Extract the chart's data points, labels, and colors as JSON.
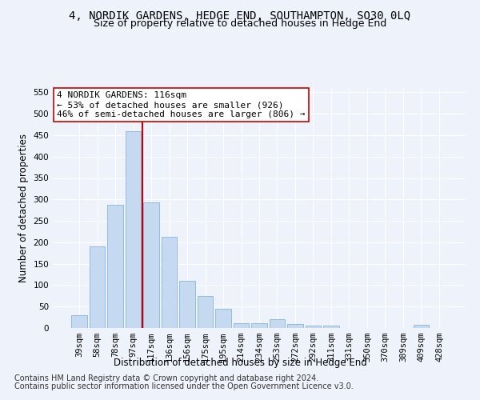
{
  "title": "4, NORDIK GARDENS, HEDGE END, SOUTHAMPTON, SO30 0LQ",
  "subtitle": "Size of property relative to detached houses in Hedge End",
  "xlabel": "Distribution of detached houses by size in Hedge End",
  "ylabel": "Number of detached properties",
  "bar_color": "#c5d9f0",
  "bar_edge_color": "#8ab4d8",
  "categories": [
    "39sqm",
    "58sqm",
    "78sqm",
    "97sqm",
    "117sqm",
    "136sqm",
    "156sqm",
    "175sqm",
    "195sqm",
    "214sqm",
    "234sqm",
    "253sqm",
    "272sqm",
    "292sqm",
    "311sqm",
    "331sqm",
    "350sqm",
    "370sqm",
    "389sqm",
    "409sqm",
    "428sqm"
  ],
  "values": [
    30,
    190,
    287,
    460,
    293,
    213,
    110,
    75,
    45,
    12,
    12,
    21,
    9,
    5,
    5,
    0,
    0,
    0,
    0,
    7,
    0
  ],
  "vline_color": "#cc0000",
  "vline_index": 4,
  "annotation_text": "4 NORDIK GARDENS: 116sqm\n← 53% of detached houses are smaller (926)\n46% of semi-detached houses are larger (806) →",
  "annotation_box_color": "#ffffff",
  "annotation_box_edge_color": "#cc0000",
  "ylim": [
    0,
    560
  ],
  "yticks": [
    0,
    50,
    100,
    150,
    200,
    250,
    300,
    350,
    400,
    450,
    500,
    550
  ],
  "footnote1": "Contains HM Land Registry data © Crown copyright and database right 2024.",
  "footnote2": "Contains public sector information licensed under the Open Government Licence v3.0.",
  "title_fontsize": 10,
  "subtitle_fontsize": 9,
  "axis_label_fontsize": 8.5,
  "tick_fontsize": 7.5,
  "annotation_fontsize": 8,
  "footnote_fontsize": 7,
  "background_color": "#eef2fa",
  "plot_bg_color": "#eef2fa"
}
